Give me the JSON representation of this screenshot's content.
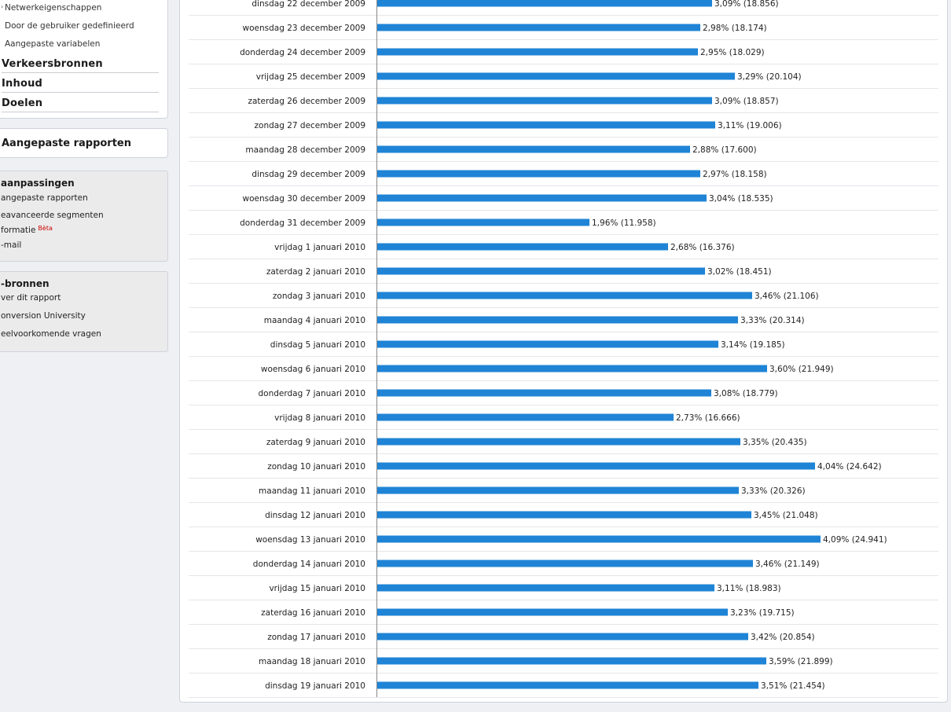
{
  "sidebar": {
    "sub_links": [
      "Netwerkeigenschappen",
      "Door de gebruiker gedefinieerd",
      "Aangepaste variabelen"
    ],
    "sections": [
      "Verkeersbronnen",
      "Inhoud",
      "Doelen"
    ],
    "custom_reports": "Aangepaste rapporten",
    "aanpassingen": {
      "heading": "aanpassingen",
      "items": [
        "angepaste rapporten",
        "eavanceerde segmenten",
        "formatie",
        "-mail"
      ],
      "beta": "Bèta"
    },
    "hulpbronnen": {
      "heading": "-bronnen",
      "items": [
        "ver dit rapport",
        "onversion University",
        "eelvoorkomende vragen"
      ]
    }
  },
  "chart_data": {
    "type": "bar",
    "orientation": "horizontal",
    "max_value": 24.941,
    "rows": [
      {
        "label": "dinsdag 22 december 2009",
        "value": 18.856,
        "text": "3,09% (18.856)"
      },
      {
        "label": "woensdag 23 december 2009",
        "value": 18.174,
        "text": "2,98% (18.174)"
      },
      {
        "label": "donderdag 24 december 2009",
        "value": 18.029,
        "text": "2,95% (18.029)"
      },
      {
        "label": "vrijdag 25 december 2009",
        "value": 20.104,
        "text": "3,29% (20.104)"
      },
      {
        "label": "zaterdag 26 december 2009",
        "value": 18.857,
        "text": "3,09% (18.857)"
      },
      {
        "label": "zondag 27 december 2009",
        "value": 19.006,
        "text": "3,11% (19.006)"
      },
      {
        "label": "maandag 28 december 2009",
        "value": 17.6,
        "text": "2,88% (17.600)"
      },
      {
        "label": "dinsdag 29 december 2009",
        "value": 18.158,
        "text": "2,97% (18.158)"
      },
      {
        "label": "woensdag 30 december 2009",
        "value": 18.535,
        "text": "3,04% (18.535)"
      },
      {
        "label": "donderdag 31 december 2009",
        "value": 11.958,
        "text": "1,96% (11.958)"
      },
      {
        "label": "vrijdag 1 januari 2010",
        "value": 16.376,
        "text": "2,68% (16.376)"
      },
      {
        "label": "zaterdag 2 januari 2010",
        "value": 18.451,
        "text": "3,02% (18.451)"
      },
      {
        "label": "zondag 3 januari 2010",
        "value": 21.106,
        "text": "3,46% (21.106)"
      },
      {
        "label": "maandag 4 januari 2010",
        "value": 20.314,
        "text": "3,33% (20.314)"
      },
      {
        "label": "dinsdag 5 januari 2010",
        "value": 19.185,
        "text": "3,14% (19.185)"
      },
      {
        "label": "woensdag 6 januari 2010",
        "value": 21.949,
        "text": "3,60% (21.949)"
      },
      {
        "label": "donderdag 7 januari 2010",
        "value": 18.779,
        "text": "3,08% (18.779)"
      },
      {
        "label": "vrijdag 8 januari 2010",
        "value": 16.666,
        "text": "2,73% (16.666)"
      },
      {
        "label": "zaterdag 9 januari 2010",
        "value": 20.435,
        "text": "3,35% (20.435)"
      },
      {
        "label": "zondag 10 januari 2010",
        "value": 24.642,
        "text": "4,04% (24.642)"
      },
      {
        "label": "maandag 11 januari 2010",
        "value": 20.326,
        "text": "3,33% (20.326)"
      },
      {
        "label": "dinsdag 12 januari 2010",
        "value": 21.048,
        "text": "3,45% (21.048)"
      },
      {
        "label": "woensdag 13 januari 2010",
        "value": 24.941,
        "text": "4,09% (24.941)"
      },
      {
        "label": "donderdag 14 januari 2010",
        "value": 21.149,
        "text": "3,46% (21.149)"
      },
      {
        "label": "vrijdag 15 januari 2010",
        "value": 18.983,
        "text": "3,11% (18.983)"
      },
      {
        "label": "zaterdag 16 januari 2010",
        "value": 19.715,
        "text": "3,23% (19.715)"
      },
      {
        "label": "zondag 17 januari 2010",
        "value": 20.854,
        "text": "3,42% (20.854)"
      },
      {
        "label": "maandag 18 januari 2010",
        "value": 21.899,
        "text": "3,59% (21.899)"
      },
      {
        "label": "dinsdag 19 januari 2010",
        "value": 21.454,
        "text": "3,51% (21.454)"
      }
    ]
  },
  "colors": {
    "bar": "#1f84d6",
    "divider": "#e4e6ea",
    "axis": "#888888"
  }
}
